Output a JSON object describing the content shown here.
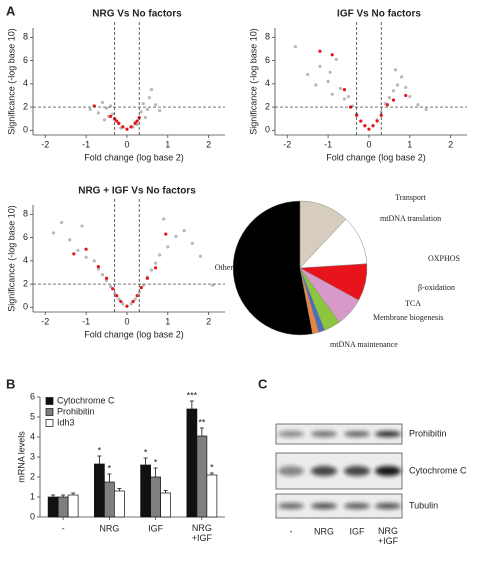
{
  "panel_labels": [
    "A",
    "B",
    "C"
  ],
  "chart_data": [
    {
      "type": "scatter",
      "title": "NRG Vs No factors",
      "xlabel": "Fold change (log base 2)",
      "ylabel": "Significance (-log base 10)",
      "xlim": [
        -2.3,
        2.4
      ],
      "ylim": [
        -0.4,
        8.8
      ],
      "xticks": [
        -2,
        -1,
        0,
        1,
        2
      ],
      "yticks": [
        0,
        2,
        4,
        6,
        8
      ],
      "vlines": [
        -0.3,
        0.3
      ],
      "hline": 2,
      "series": [
        {
          "color": "#b8b8b8",
          "x": [
            -0.9,
            -0.7,
            -0.6,
            -0.5,
            -0.45,
            -0.4,
            -0.3,
            -0.2,
            -0.1,
            0,
            0.1,
            0.2,
            0.3,
            0.35,
            0.4,
            0.5,
            0.55,
            0.6,
            0.7,
            0.8,
            -0.55,
            0.45,
            -0.35,
            0.25,
            -0.15,
            0.15
          ],
          "y": [
            1.8,
            1.5,
            2.4,
            1.9,
            1.2,
            2.1,
            0.9,
            0.6,
            0.3,
            0.1,
            0.3,
            0.7,
            1.0,
            1.6,
            2.3,
            1.8,
            2.8,
            3.5,
            2.2,
            1.7,
            0.9,
            1.1,
            1.4,
            0.5,
            0.2,
            0.3
          ]
        },
        {
          "color": "#e8141c",
          "x": [
            -0.4,
            -0.3,
            -0.25,
            -0.2,
            -0.1,
            0,
            0.1,
            0.2,
            0.25,
            0.3,
            -0.8
          ],
          "y": [
            1.2,
            1.0,
            0.8,
            0.6,
            0.3,
            0.1,
            0.3,
            0.6,
            0.8,
            1.1,
            2.1
          ]
        }
      ]
    },
    {
      "type": "scatter",
      "title": "IGF Vs No factors",
      "xlabel": "Fold change (log base 2)",
      "ylabel": "Significance (-log base 10)",
      "xlim": [
        -2.3,
        2.4
      ],
      "ylim": [
        -0.4,
        8.8
      ],
      "xticks": [
        -2,
        -1,
        0,
        1,
        2
      ],
      "yticks": [
        0,
        2,
        4,
        6,
        8
      ],
      "vlines": [
        -0.3,
        0.3
      ],
      "hline": 2,
      "series": [
        {
          "color": "#b8b8b8",
          "x": [
            -1.8,
            -1.5,
            -1.3,
            -1.2,
            -1.0,
            -0.9,
            -0.8,
            -0.7,
            -0.6,
            -0.5,
            -0.4,
            -0.3,
            -0.2,
            -0.1,
            0,
            0.1,
            0.2,
            0.3,
            0.4,
            0.5,
            0.6,
            0.7,
            0.8,
            0.9,
            1.0,
            1.2,
            1.4,
            -0.95,
            0.65
          ],
          "y": [
            7.2,
            4.8,
            3.9,
            5.5,
            4.2,
            3.1,
            6.1,
            3.6,
            2.7,
            2.9,
            2.1,
            1.4,
            0.8,
            0.4,
            0.1,
            0.4,
            0.9,
            1.6,
            2.3,
            2.8,
            3.4,
            3.9,
            4.6,
            3.7,
            2.9,
            2.2,
            1.8,
            5.0,
            5.2
          ]
        },
        {
          "color": "#e8141c",
          "x": [
            -0.9,
            -0.6,
            -0.45,
            -0.3,
            -0.2,
            -0.1,
            0,
            0.1,
            0.2,
            0.3,
            0.45,
            0.6,
            -1.2,
            0.9
          ],
          "y": [
            6.5,
            3.5,
            2.0,
            1.3,
            0.8,
            0.4,
            0.1,
            0.4,
            0.8,
            1.3,
            2.2,
            2.6,
            6.8,
            3.0
          ]
        }
      ]
    },
    {
      "type": "scatter",
      "title": "NRG + IGF Vs No factors",
      "xlabel": "Fold change (log base 2)",
      "ylabel": "Significance (-log base 10)",
      "xlim": [
        -2.3,
        2.4
      ],
      "ylim": [
        -0.4,
        8.8
      ],
      "xticks": [
        -2,
        -1,
        0,
        1,
        2
      ],
      "yticks": [
        0,
        2,
        4,
        6,
        8
      ],
      "vlines": [
        -0.3,
        0.3
      ],
      "hline": 2,
      "series": [
        {
          "color": "#b8b8b8",
          "x": [
            -1.8,
            -1.6,
            -1.4,
            -1.2,
            -1.0,
            -0.8,
            -0.7,
            -0.6,
            -0.5,
            -0.4,
            -0.3,
            -0.2,
            -0.1,
            0,
            0.1,
            0.2,
            0.3,
            0.4,
            0.5,
            0.6,
            0.7,
            0.8,
            1.0,
            1.2,
            1.4,
            1.6,
            1.8,
            2.1,
            -1.1,
            0.9
          ],
          "y": [
            6.4,
            7.3,
            5.8,
            4.9,
            4.3,
            4.0,
            3.3,
            2.8,
            2.3,
            1.8,
            1.2,
            0.7,
            0.3,
            0.1,
            0.3,
            0.7,
            1.3,
            1.9,
            2.6,
            3.2,
            3.8,
            4.5,
            5.2,
            6.1,
            6.6,
            5.5,
            4.4,
            1.9,
            7.0,
            7.6
          ]
        },
        {
          "color": "#e8141c",
          "x": [
            -1.0,
            -0.7,
            -0.5,
            -0.35,
            -0.25,
            -0.15,
            0,
            0.15,
            0.25,
            0.35,
            0.5,
            0.7,
            0.95,
            -1.3
          ],
          "y": [
            5.0,
            3.5,
            2.5,
            1.6,
            1.0,
            0.5,
            0.1,
            0.5,
            1.0,
            1.7,
            2.5,
            3.4,
            6.3,
            4.6
          ]
        }
      ]
    },
    {
      "type": "pie",
      "labels": [
        "Transport",
        "mtDNA translation",
        "OXPHOS",
        "β-oxidation",
        "TCA",
        "Membrane biogenesis",
        "mtDNA maintenance",
        "Other"
      ],
      "values": [
        12,
        12,
        9,
        7,
        4,
        1.5,
        1.5,
        53
      ],
      "colors": [
        "#d6cdbf",
        "#ffffff",
        "#e8141c",
        "#d79ac8",
        "#8cc63e",
        "#4a6fb5",
        "#f0823c",
        "#000000"
      ]
    },
    {
      "type": "bar",
      "ylabel": "mRNA levels",
      "categories": [
        "-",
        "NRG",
        "IGF",
        "NRG\n+IGF"
      ],
      "ylim": [
        0,
        6
      ],
      "yticks": [
        0,
        1,
        2,
        3,
        4,
        5,
        6
      ],
      "series": [
        {
          "name": "Cytochrome C",
          "color": "#111111",
          "values": [
            1,
            2.65,
            2.6,
            5.4
          ],
          "errors": [
            0.1,
            0.4,
            0.35,
            0.4
          ],
          "annotations": [
            null,
            "*",
            "*",
            "***"
          ]
        },
        {
          "name": "Prohibitin",
          "color": "#7f7f7f",
          "values": [
            1,
            1.75,
            2,
            4.05
          ],
          "errors": [
            0.1,
            0.4,
            0.45,
            0.4
          ],
          "annotations": [
            null,
            "*",
            "*",
            "**"
          ]
        },
        {
          "name": "Idh3",
          "color": "#ffffff",
          "values": [
            1.1,
            1.3,
            1.2,
            2.1
          ],
          "errors": [
            0.1,
            0.12,
            0.12,
            0.1
          ],
          "annotations": [
            null,
            null,
            null,
            "*"
          ]
        }
      ]
    }
  ],
  "blot": {
    "rows": [
      "Prohibitin",
      "Cytochrome C",
      "Tubulin"
    ],
    "lanes": [
      "-",
      "NRG",
      "IGF",
      "NRG\n+IGF"
    ]
  }
}
